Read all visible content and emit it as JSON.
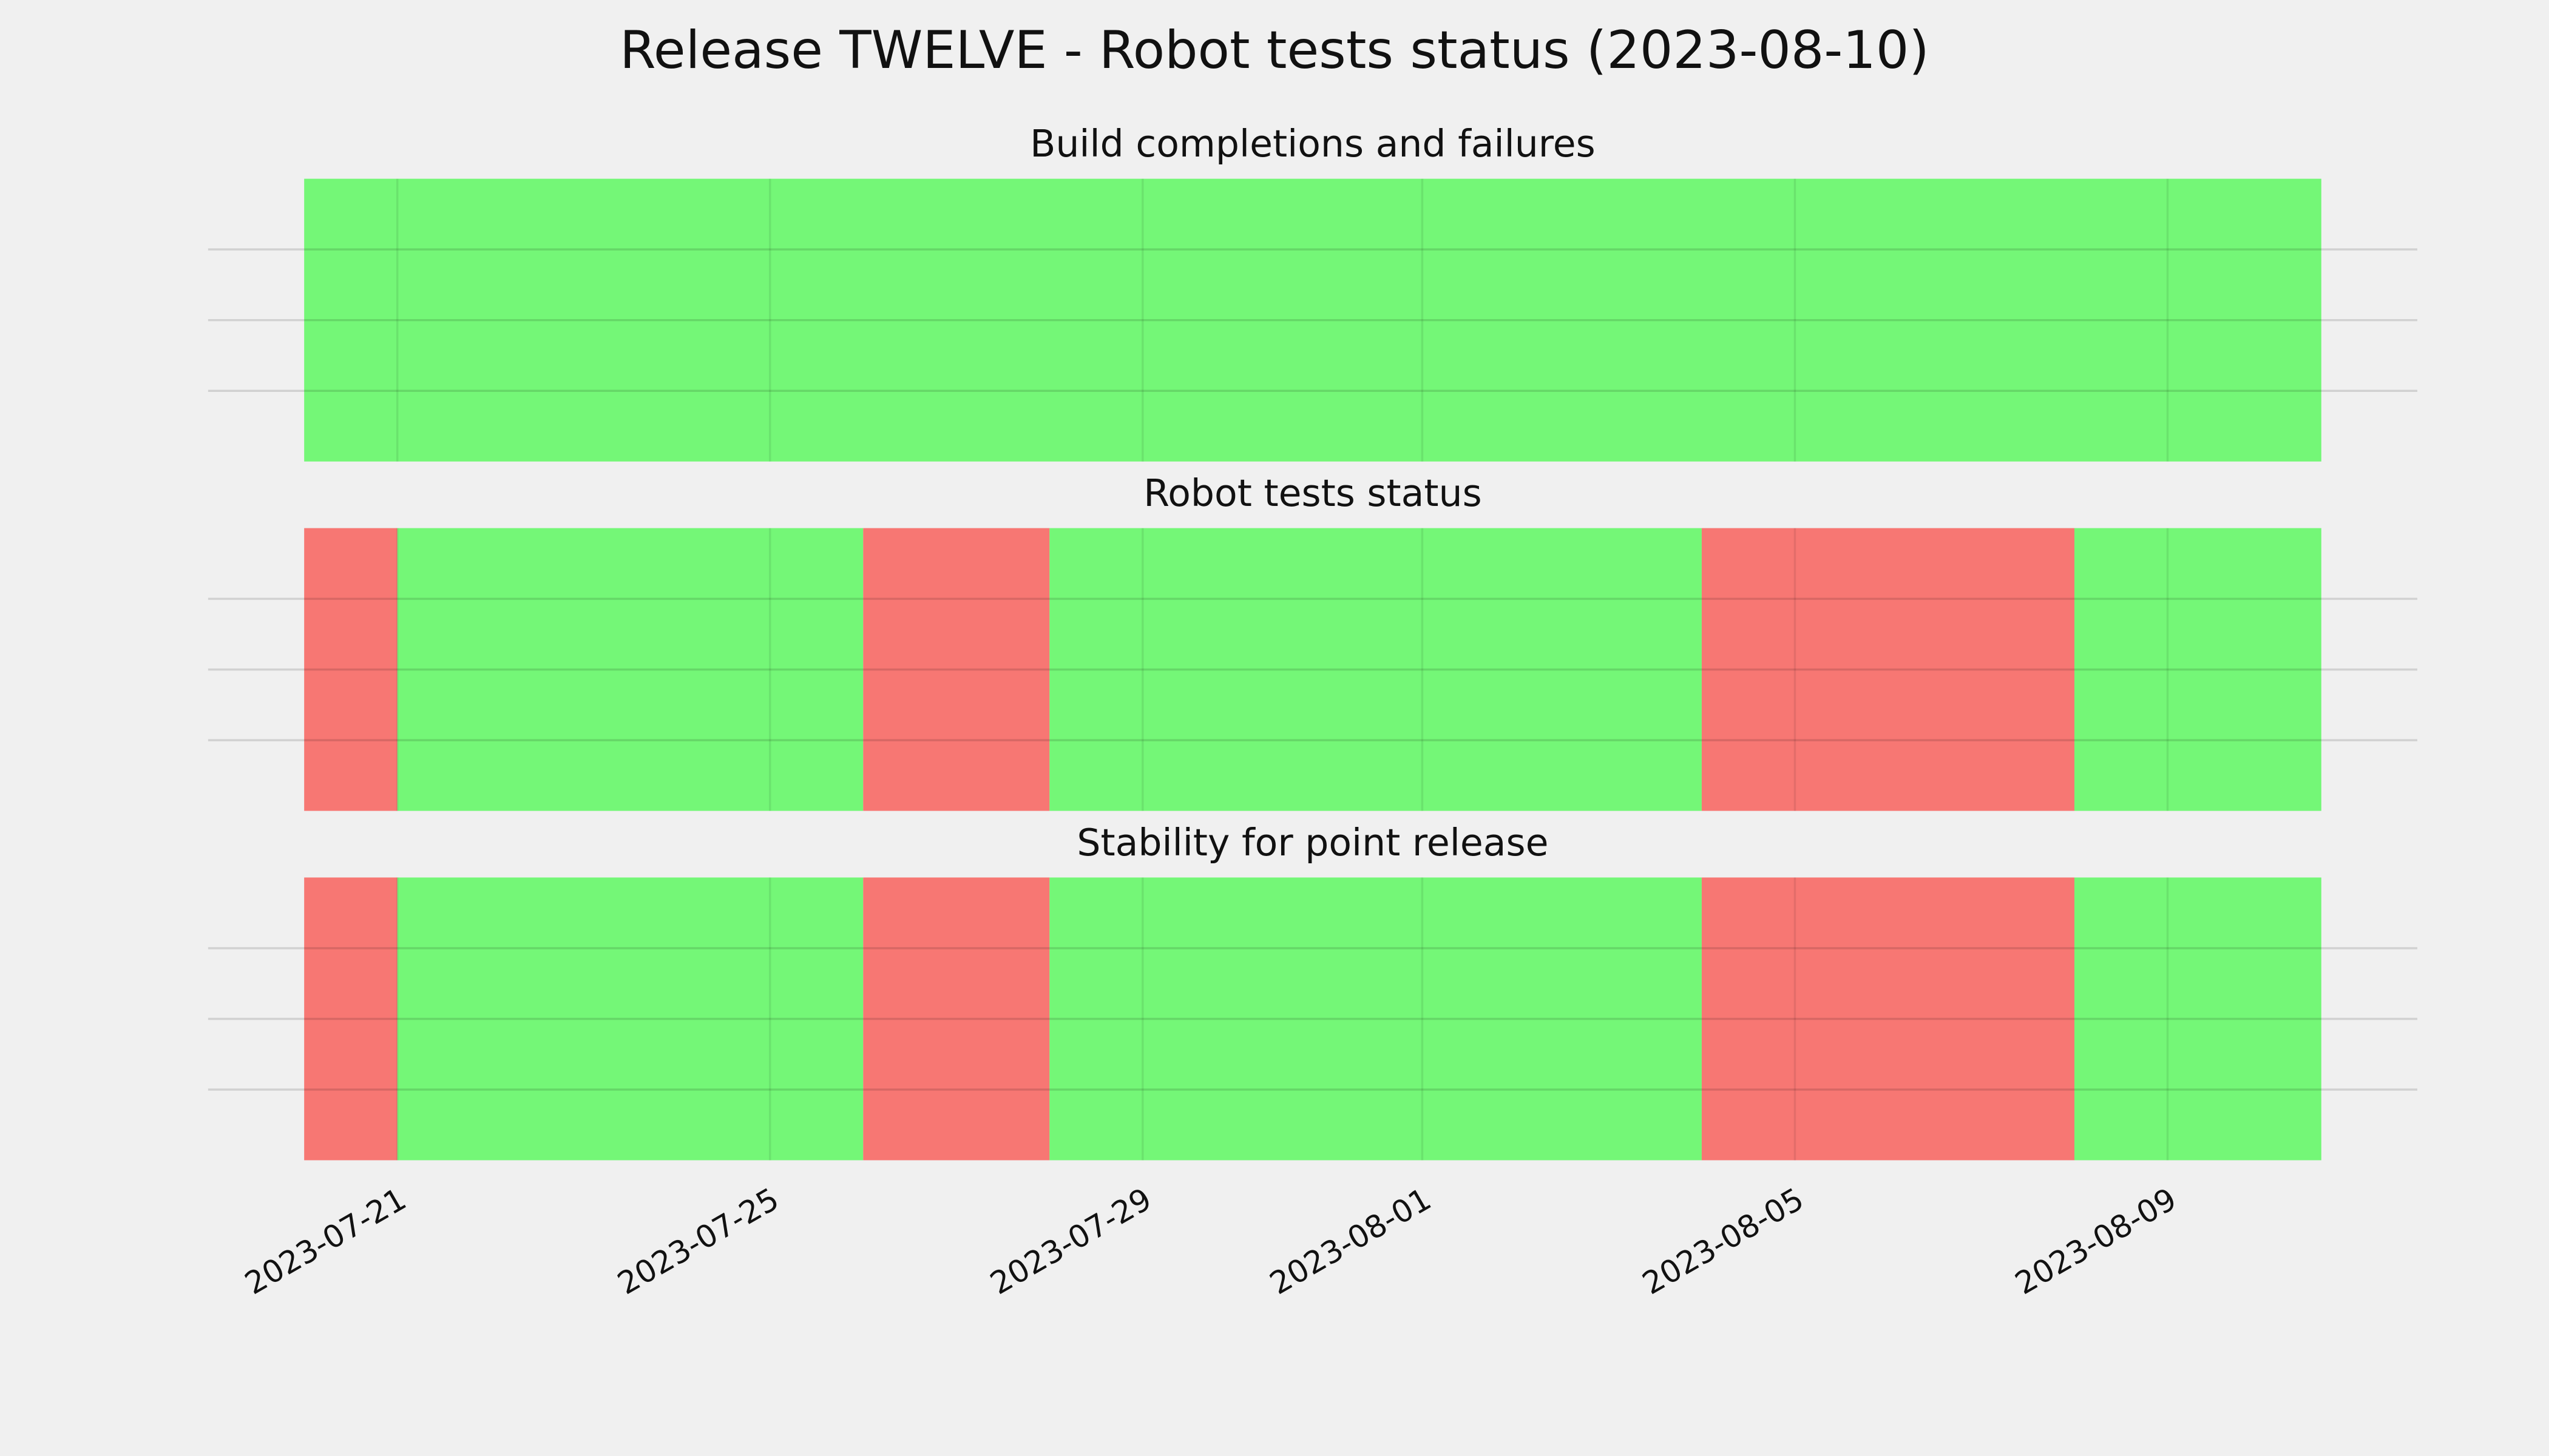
{
  "chart_data": {
    "type": "timeline",
    "title": "Release TWELVE - Robot tests status (2023-08-10)",
    "xlim": [
      "2023-07-18T23:15",
      "2023-08-11T16:20"
    ],
    "xticks": [
      "2023-07-21",
      "2023-07-25",
      "2023-07-29",
      "2023-08-01",
      "2023-08-05",
      "2023-08-09"
    ],
    "grid": true,
    "panels": [
      {
        "title": "Build completions and failures",
        "ylim": [
          0,
          1
        ],
        "yticks": [
          0.25,
          0.5,
          0.75
        ],
        "segments": [
          {
            "start": "2023-07-20",
            "end": "2023-08-10T15:36",
            "value": 1,
            "color": "#74f777"
          }
        ]
      },
      {
        "title": "Robot tests status",
        "ylim": [
          0,
          1
        ],
        "yticks": [
          0.25,
          0.5,
          0.75
        ],
        "segments": [
          {
            "start": "2023-07-20",
            "end": "2023-07-21",
            "value": 1,
            "color": "#f77773"
          },
          {
            "start": "2023-07-21",
            "end": "2023-07-26",
            "value": 1,
            "color": "#74f777"
          },
          {
            "start": "2023-07-26",
            "end": "2023-07-28",
            "value": 1,
            "color": "#f77773"
          },
          {
            "start": "2023-07-28",
            "end": "2023-08-04",
            "value": 1,
            "color": "#74f777"
          },
          {
            "start": "2023-08-04",
            "end": "2023-08-08",
            "value": 1,
            "color": "#f77773"
          },
          {
            "start": "2023-08-08",
            "end": "2023-08-10T15:36",
            "value": 1,
            "color": "#74f777"
          }
        ]
      },
      {
        "title": "Stability for point release",
        "ylim": [
          0,
          1
        ],
        "yticks": [
          0.25,
          0.5,
          0.75
        ],
        "segments": [
          {
            "start": "2023-07-20",
            "end": "2023-07-21",
            "value": 1,
            "color": "#f77773"
          },
          {
            "start": "2023-07-21",
            "end": "2023-07-26",
            "value": 1,
            "color": "#74f777"
          },
          {
            "start": "2023-07-26",
            "end": "2023-07-28",
            "value": 1,
            "color": "#f77773"
          },
          {
            "start": "2023-07-28",
            "end": "2023-08-04",
            "value": 1,
            "color": "#74f777"
          },
          {
            "start": "2023-08-04",
            "end": "2023-08-08",
            "value": 1,
            "color": "#f77773"
          },
          {
            "start": "2023-08-08",
            "end": "2023-08-10T15:36",
            "value": 1,
            "color": "#74f777"
          }
        ]
      }
    ]
  }
}
